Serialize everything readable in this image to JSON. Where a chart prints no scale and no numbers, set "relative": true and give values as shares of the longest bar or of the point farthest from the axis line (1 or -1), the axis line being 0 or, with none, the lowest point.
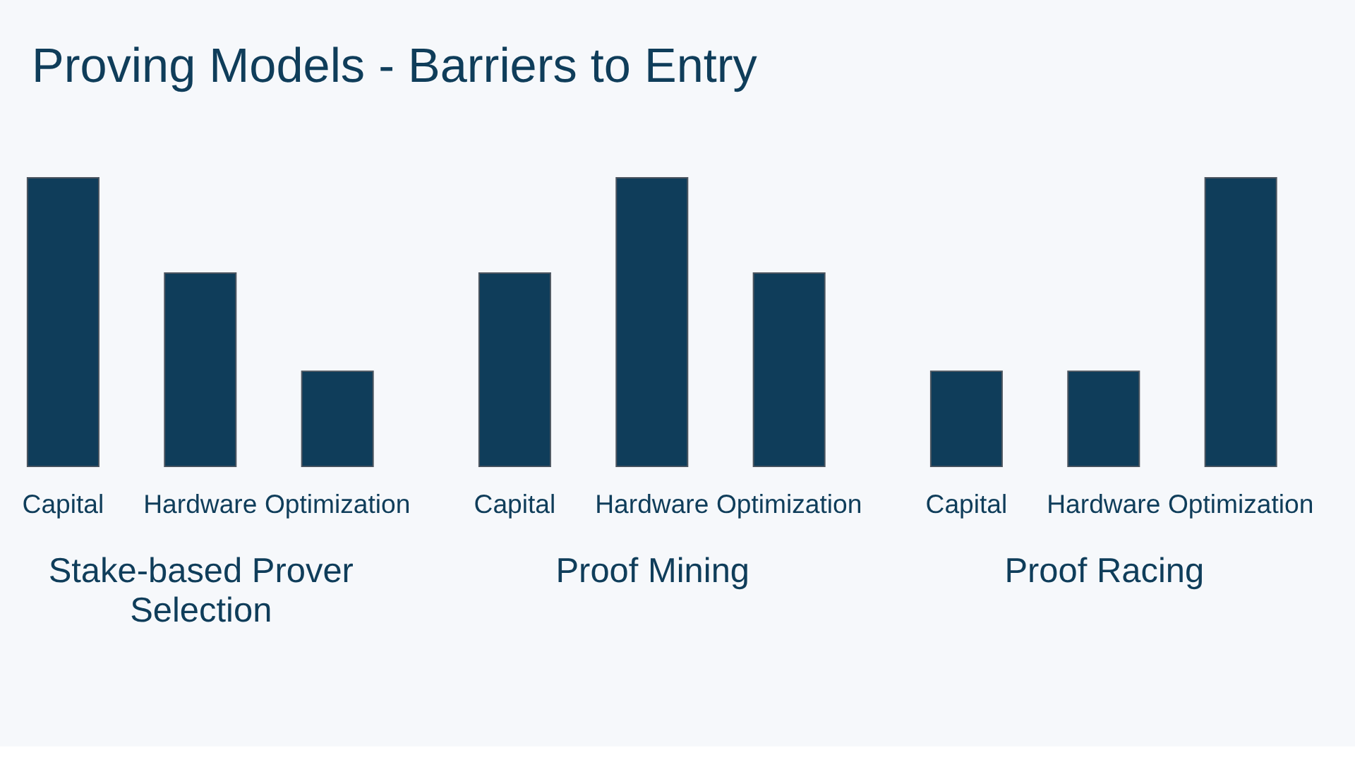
{
  "chart_data": [
    {
      "type": "bar",
      "title": "Proving Models - Barriers to Entry",
      "xlabel": "Stake-based Prover Selection",
      "categories": [
        "Capital",
        "Hardware",
        "Optimization"
      ],
      "relative": true,
      "color": "#0f3d5a",
      "values": [
        1,
        0.67,
        0.33
      ]
    },
    {
      "type": "bar",
      "xlabel": "Proof Mining",
      "categories": [
        "Capital",
        "Hardware",
        "Optimization"
      ],
      "relative": true,
      "color": "#0f3d5a",
      "values": [
        0.67,
        1,
        0.67
      ]
    },
    {
      "type": "bar",
      "xlabel": "Proof Racing",
      "categories": [
        "Capital",
        "Hardware",
        "Optimization"
      ],
      "relative": true,
      "color": "#0f3d5a",
      "values": [
        0.33,
        0.33,
        1
      ]
    }
  ]
}
